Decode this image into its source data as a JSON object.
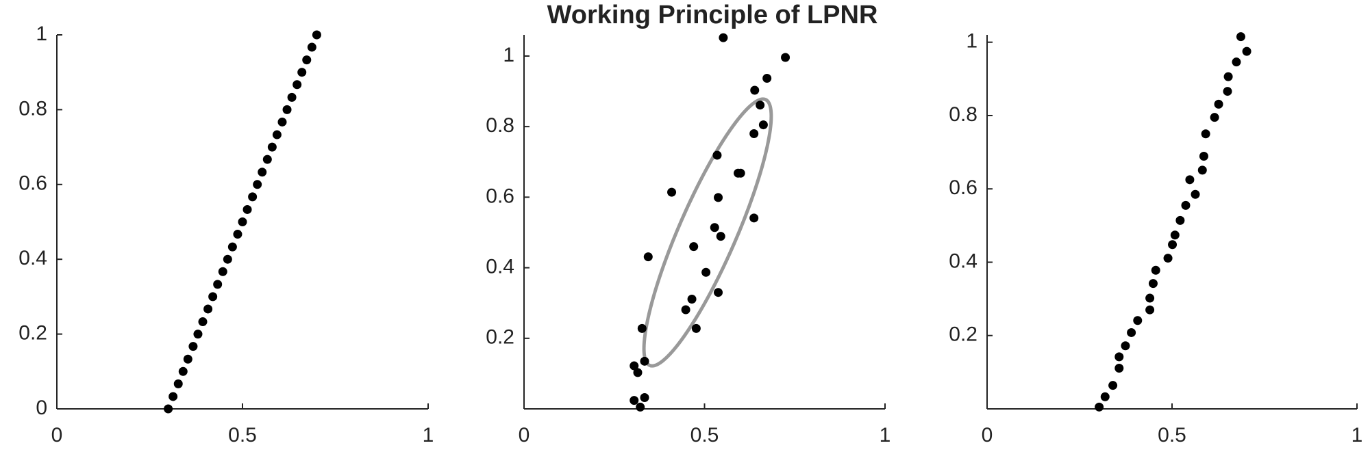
{
  "chart_data": [
    {
      "type": "scatter",
      "color": "#000000",
      "x": [
        0.3,
        0.313,
        0.327,
        0.34,
        0.353,
        0.367,
        0.38,
        0.393,
        0.407,
        0.42,
        0.433,
        0.447,
        0.46,
        0.473,
        0.487,
        0.5,
        0.513,
        0.527,
        0.54,
        0.553,
        0.567,
        0.58,
        0.593,
        0.607,
        0.62,
        0.633,
        0.647,
        0.66,
        0.673,
        0.687,
        0.7
      ],
      "y": [
        0,
        0.033,
        0.067,
        0.1,
        0.133,
        0.167,
        0.2,
        0.233,
        0.267,
        0.3,
        0.333,
        0.367,
        0.4,
        0.433,
        0.467,
        0.5,
        0.533,
        0.567,
        0.6,
        0.633,
        0.667,
        0.7,
        0.733,
        0.767,
        0.8,
        0.833,
        0.867,
        0.9,
        0.933,
        0.967,
        1
      ],
      "xlim": [
        0,
        1
      ],
      "ylim": [
        0,
        1
      ],
      "xticks": [
        0,
        0.5,
        1
      ],
      "yticks": [
        0,
        0.2,
        0.4,
        0.6,
        0.8,
        1
      ]
    },
    {
      "type": "scatter",
      "color": "#000000",
      "title": "Working Principle of LPNR",
      "x": [
        0.552,
        0.724,
        0.673,
        0.639,
        0.654,
        0.663,
        0.637,
        0.6,
        0.593,
        0.535,
        0.538,
        0.409,
        0.637,
        0.528,
        0.545,
        0.344,
        0.47,
        0.504,
        0.538,
        0.465,
        0.448,
        0.477,
        0.327,
        0.305,
        0.334,
        0.315,
        0.305,
        0.334,
        0.322
      ],
      "y": [
        1.052,
        0.996,
        0.937,
        0.903,
        0.861,
        0.805,
        0.78,
        0.668,
        0.668,
        0.719,
        0.599,
        0.614,
        0.541,
        0.514,
        0.489,
        0.431,
        0.46,
        0.387,
        0.33,
        0.311,
        0.281,
        0.228,
        0.228,
        0.122,
        0.135,
        0.103,
        0.024,
        0.032,
        0.005
      ],
      "xlim": [
        0,
        1
      ],
      "ylim": [
        0,
        1.06
      ],
      "xticks": [
        0,
        0.5,
        1
      ],
      "yticks": [
        0.2,
        0.4,
        0.6,
        0.8,
        1
      ]
    },
    {
      "type": "scatter",
      "color": "#000000",
      "x": [
        0.303,
        0.319,
        0.34,
        0.357,
        0.357,
        0.374,
        0.39,
        0.407,
        0.44,
        0.44,
        0.449,
        0.456,
        0.489,
        0.501,
        0.508,
        0.522,
        0.537,
        0.548,
        0.563,
        0.582,
        0.586,
        0.591,
        0.615,
        0.626,
        0.65,
        0.652,
        0.674,
        0.702,
        0.686
      ],
      "y": [
        0.005,
        0.033,
        0.064,
        0.111,
        0.142,
        0.172,
        0.208,
        0.241,
        0.27,
        0.302,
        0.342,
        0.378,
        0.411,
        0.448,
        0.474,
        0.514,
        0.555,
        0.625,
        0.585,
        0.651,
        0.689,
        0.75,
        0.795,
        0.831,
        0.866,
        0.906,
        0.946,
        0.975,
        1.015
      ],
      "xlim": [
        0,
        1
      ],
      "ylim": [
        0,
        1.02
      ],
      "xticks": [
        0,
        0.5,
        1
      ],
      "yticks": [
        0.2,
        0.4,
        0.6,
        0.8,
        1
      ]
    }
  ]
}
